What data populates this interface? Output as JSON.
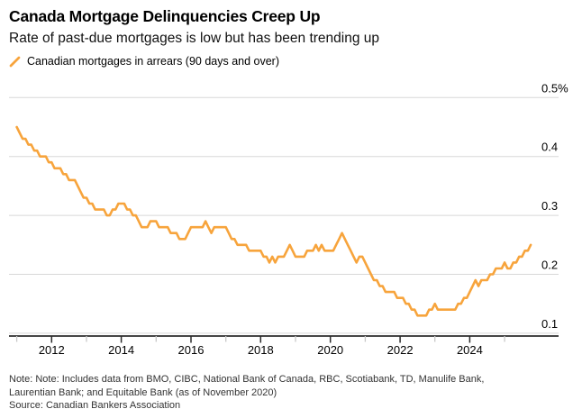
{
  "header": {
    "title": "Canada Mortgage Delinquencies Creep Up",
    "subtitle": "Rate of past-due mortgages is low but has been trending up"
  },
  "legend": {
    "label": "Canadian mortgages in arrears (90 days and over)",
    "marker": "orange-slash"
  },
  "colors": {
    "accent_orange": "#F7A43C",
    "gridline": "#D8D8D8",
    "axis": "#2B2B2B",
    "minor_tick": "#C8C8C8",
    "text": "#000000",
    "note_text": "#333333"
  },
  "notes": {
    "note_line1": "Note: Note: Includes data from BMO, CIBC, National Bank of Canada, RBC, Scotiabank, TD, Manulife Bank,",
    "note_line2": "Laurentian Bank; and Equitable Bank (as of November 2020)",
    "source": "Source: Canadian Bankers Association"
  },
  "chart_data": {
    "type": "line",
    "title": "Canada Mortgage Delinquencies Creep Up",
    "unit": "percent",
    "grid": "horizontal",
    "legend_position": "top-left",
    "x_start_year": 2011,
    "x_start_month": 1,
    "frequency": "monthly",
    "ylim": [
      0.08,
      0.52
    ],
    "y_ticks": [
      {
        "value": 0.5,
        "label": "0.5%"
      },
      {
        "value": 0.4,
        "label": "0.4"
      },
      {
        "value": 0.3,
        "label": "0.3"
      },
      {
        "value": 0.2,
        "label": "0.2"
      },
      {
        "value": 0.1,
        "label": "0.1"
      }
    ],
    "x_ticks_labeled": [
      2012,
      2014,
      2016,
      2018,
      2020,
      2022,
      2024
    ],
    "x_ticks_minor": [
      2011,
      2013,
      2015,
      2017,
      2019,
      2021,
      2023,
      2025
    ],
    "series": [
      {
        "name": "Canadian mortgages in arrears (90 days and over)",
        "color": "#F7A43C",
        "values": [
          0.45,
          0.44,
          0.43,
          0.43,
          0.42,
          0.42,
          0.41,
          0.41,
          0.4,
          0.4,
          0.4,
          0.39,
          0.39,
          0.38,
          0.38,
          0.38,
          0.37,
          0.37,
          0.36,
          0.36,
          0.36,
          0.35,
          0.34,
          0.33,
          0.33,
          0.32,
          0.32,
          0.31,
          0.31,
          0.31,
          0.31,
          0.3,
          0.3,
          0.31,
          0.31,
          0.32,
          0.32,
          0.32,
          0.31,
          0.31,
          0.3,
          0.3,
          0.29,
          0.28,
          0.28,
          0.28,
          0.29,
          0.29,
          0.29,
          0.28,
          0.28,
          0.28,
          0.28,
          0.27,
          0.27,
          0.27,
          0.26,
          0.26,
          0.26,
          0.27,
          0.28,
          0.28,
          0.28,
          0.28,
          0.28,
          0.29,
          0.28,
          0.27,
          0.28,
          0.28,
          0.28,
          0.28,
          0.28,
          0.27,
          0.26,
          0.26,
          0.25,
          0.25,
          0.25,
          0.25,
          0.24,
          0.24,
          0.24,
          0.24,
          0.24,
          0.23,
          0.23,
          0.22,
          0.23,
          0.22,
          0.23,
          0.23,
          0.23,
          0.24,
          0.25,
          0.24,
          0.23,
          0.23,
          0.23,
          0.23,
          0.24,
          0.24,
          0.24,
          0.25,
          0.24,
          0.25,
          0.24,
          0.24,
          0.24,
          0.24,
          0.25,
          0.26,
          0.27,
          0.26,
          0.25,
          0.24,
          0.23,
          0.22,
          0.23,
          0.23,
          0.22,
          0.21,
          0.2,
          0.19,
          0.19,
          0.18,
          0.18,
          0.17,
          0.17,
          0.17,
          0.17,
          0.16,
          0.16,
          0.16,
          0.15,
          0.15,
          0.14,
          0.14,
          0.13,
          0.13,
          0.13,
          0.13,
          0.14,
          0.14,
          0.15,
          0.14,
          0.14,
          0.14,
          0.14,
          0.14,
          0.14,
          0.14,
          0.15,
          0.15,
          0.16,
          0.16,
          0.17,
          0.18,
          0.19,
          0.18,
          0.19,
          0.19,
          0.19,
          0.2,
          0.2,
          0.21,
          0.21,
          0.21,
          0.22,
          0.21,
          0.21,
          0.22,
          0.22,
          0.23,
          0.23,
          0.24,
          0.24,
          0.25
        ]
      }
    ]
  }
}
